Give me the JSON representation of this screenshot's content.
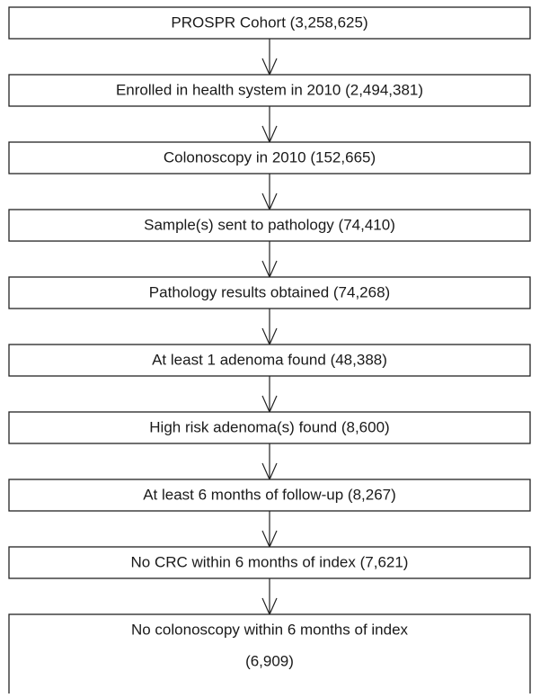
{
  "nodes": [
    {
      "lines": [
        "PROSPR Cohort (3,258,625)"
      ]
    },
    {
      "lines": [
        "Enrolled in health system in 2010 (2,494,381)"
      ]
    },
    {
      "lines": [
        "Colonoscopy in 2010 (152,665)"
      ]
    },
    {
      "lines": [
        "Sample(s) sent to pathology (74,410)"
      ]
    },
    {
      "lines": [
        "Pathology results obtained (74,268)"
      ]
    },
    {
      "lines": [
        "At least 1 adenoma found (48,388)"
      ]
    },
    {
      "lines": [
        "High risk adenoma(s) found (8,600)"
      ]
    },
    {
      "lines": [
        "At least 6 months of follow-up (8,267)"
      ]
    },
    {
      "lines": [
        "No CRC within 6 months of index (7,621)"
      ]
    },
    {
      "lines": [
        "No colonoscopy within 6 months of index",
        "(6,909)"
      ]
    }
  ]
}
